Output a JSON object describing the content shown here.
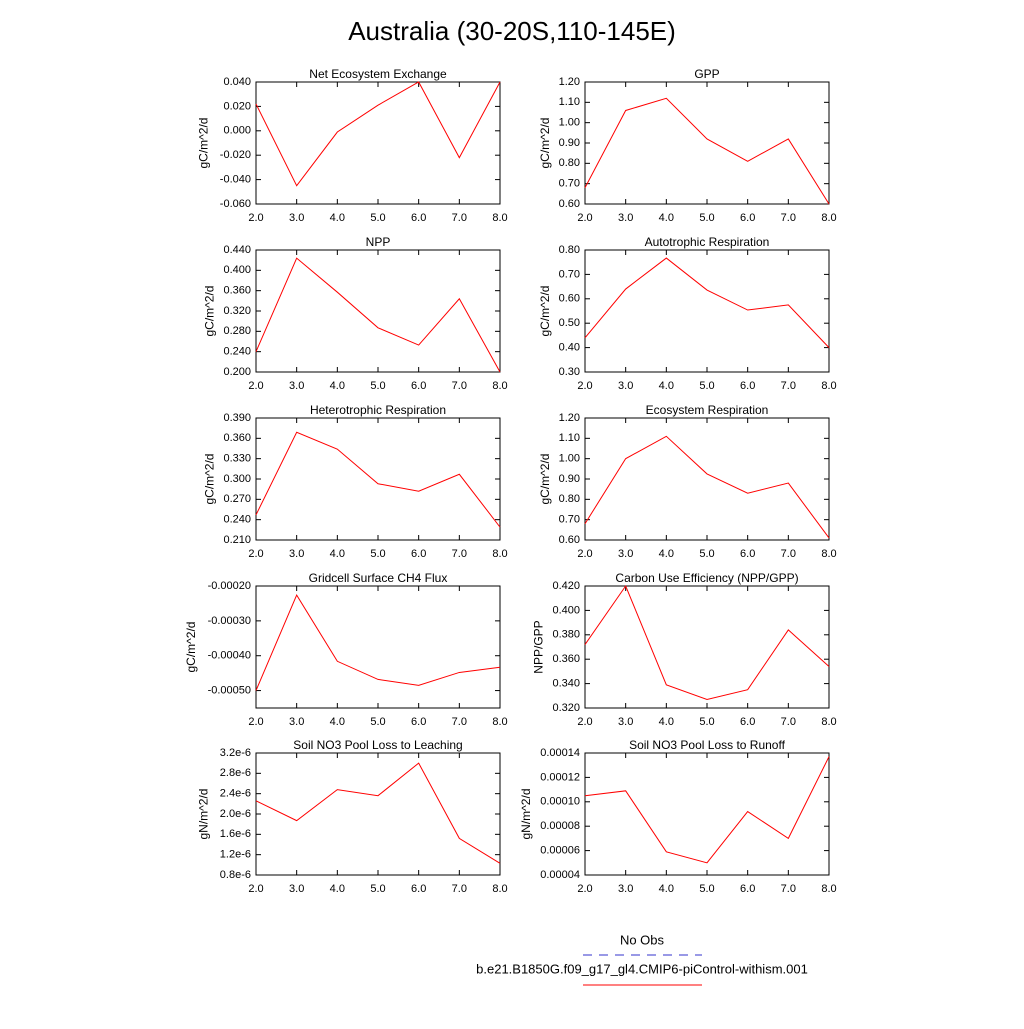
{
  "title": "Australia (30-20S,110-145E)",
  "legend": [
    {
      "name": "No Obs",
      "color": "#3333cc",
      "dashed": true
    },
    {
      "name": "b.e21.B1850G.f09_g17_gl4.CMIP6-piControl-withism.001",
      "color": "#ff0000"
    }
  ],
  "chart_data": [
    {
      "type": "line",
      "title": "Net Ecosystem Exchange",
      "ylabel": "gC/m^2/d",
      "color": "#ff0000",
      "x": [
        2,
        3,
        4,
        5,
        6,
        7,
        8
      ],
      "values": [
        0.022,
        -0.045,
        -0.001,
        0.021,
        0.04,
        -0.022,
        0.04
      ],
      "xlim": [
        2,
        8
      ],
      "xticks": [
        {
          "value": 2,
          "label": "2.0"
        },
        {
          "value": 3,
          "label": "3.0"
        },
        {
          "value": 4,
          "label": "4.0"
        },
        {
          "value": 5,
          "label": "5.0"
        },
        {
          "value": 6,
          "label": "6.0"
        },
        {
          "value": 7,
          "label": "7.0"
        },
        {
          "value": 8,
          "label": "8.0"
        }
      ],
      "ylim": [
        -0.06,
        0.04
      ],
      "yticks": [
        {
          "value": -0.06,
          "label": "-0.060"
        },
        {
          "value": -0.04,
          "label": "-0.040"
        },
        {
          "value": -0.02,
          "label": "-0.020"
        },
        {
          "value": 0,
          "label": "0.000"
        },
        {
          "value": 0.02,
          "label": "0.020"
        },
        {
          "value": 0.04,
          "label": "0.040"
        }
      ]
    },
    {
      "type": "line",
      "title": "GPP",
      "ylabel": "gC/m^2/d",
      "color": "#ff0000",
      "x": [
        2,
        3,
        4,
        5,
        6,
        7,
        8
      ],
      "values": [
        0.68,
        1.06,
        1.12,
        0.92,
        0.81,
        0.92,
        0.6
      ],
      "xlim": [
        2,
        8
      ],
      "xticks": [
        {
          "value": 2,
          "label": "2.0"
        },
        {
          "value": 3,
          "label": "3.0"
        },
        {
          "value": 4,
          "label": "4.0"
        },
        {
          "value": 5,
          "label": "5.0"
        },
        {
          "value": 6,
          "label": "6.0"
        },
        {
          "value": 7,
          "label": "7.0"
        },
        {
          "value": 8,
          "label": "8.0"
        }
      ],
      "ylim": [
        0.6,
        1.2
      ],
      "yticks": [
        {
          "value": 0.6,
          "label": "0.60"
        },
        {
          "value": 0.7,
          "label": "0.70"
        },
        {
          "value": 0.8,
          "label": "0.80"
        },
        {
          "value": 0.9,
          "label": "0.90"
        },
        {
          "value": 1.0,
          "label": "1.00"
        },
        {
          "value": 1.1,
          "label": "1.10"
        },
        {
          "value": 1.2,
          "label": "1.20"
        }
      ]
    },
    {
      "type": "line",
      "title": "NPP",
      "ylabel": "gC/m^2/d",
      "color": "#ff0000",
      "x": [
        2,
        3,
        4,
        5,
        6,
        7,
        8
      ],
      "values": [
        0.24,
        0.424,
        0.357,
        0.287,
        0.253,
        0.344,
        0.2
      ],
      "xlim": [
        2,
        8
      ],
      "xticks": [
        {
          "value": 2,
          "label": "2.0"
        },
        {
          "value": 3,
          "label": "3.0"
        },
        {
          "value": 4,
          "label": "4.0"
        },
        {
          "value": 5,
          "label": "5.0"
        },
        {
          "value": 6,
          "label": "6.0"
        },
        {
          "value": 7,
          "label": "7.0"
        },
        {
          "value": 8,
          "label": "8.0"
        }
      ],
      "ylim": [
        0.2,
        0.44
      ],
      "yticks": [
        {
          "value": 0.2,
          "label": "0.200"
        },
        {
          "value": 0.24,
          "label": "0.240"
        },
        {
          "value": 0.28,
          "label": "0.280"
        },
        {
          "value": 0.32,
          "label": "0.320"
        },
        {
          "value": 0.36,
          "label": "0.360"
        },
        {
          "value": 0.4,
          "label": "0.400"
        },
        {
          "value": 0.44,
          "label": "0.440"
        }
      ]
    },
    {
      "type": "line",
      "title": "Autotrophic Respiration",
      "ylabel": "gC/m^2/d",
      "color": "#ff0000",
      "x": [
        2,
        3,
        4,
        5,
        6,
        7,
        8
      ],
      "values": [
        0.44,
        0.64,
        0.767,
        0.636,
        0.554,
        0.575,
        0.4
      ],
      "xlim": [
        2,
        8
      ],
      "xticks": [
        {
          "value": 2,
          "label": "2.0"
        },
        {
          "value": 3,
          "label": "3.0"
        },
        {
          "value": 4,
          "label": "4.0"
        },
        {
          "value": 5,
          "label": "5.0"
        },
        {
          "value": 6,
          "label": "6.0"
        },
        {
          "value": 7,
          "label": "7.0"
        },
        {
          "value": 8,
          "label": "8.0"
        }
      ],
      "ylim": [
        0.3,
        0.8
      ],
      "yticks": [
        {
          "value": 0.3,
          "label": "0.30"
        },
        {
          "value": 0.4,
          "label": "0.40"
        },
        {
          "value": 0.5,
          "label": "0.50"
        },
        {
          "value": 0.6,
          "label": "0.60"
        },
        {
          "value": 0.7,
          "label": "0.70"
        },
        {
          "value": 0.8,
          "label": "0.80"
        }
      ]
    },
    {
      "type": "line",
      "title": "Heterotrophic Respiration",
      "ylabel": "gC/m^2/d",
      "color": "#ff0000",
      "x": [
        2,
        3,
        4,
        5,
        6,
        7,
        8
      ],
      "values": [
        0.247,
        0.369,
        0.344,
        0.293,
        0.282,
        0.307,
        0.229
      ],
      "xlim": [
        2,
        8
      ],
      "xticks": [
        {
          "value": 2,
          "label": "2.0"
        },
        {
          "value": 3,
          "label": "3.0"
        },
        {
          "value": 4,
          "label": "4.0"
        },
        {
          "value": 5,
          "label": "5.0"
        },
        {
          "value": 6,
          "label": "6.0"
        },
        {
          "value": 7,
          "label": "7.0"
        },
        {
          "value": 8,
          "label": "8.0"
        }
      ],
      "ylim": [
        0.21,
        0.39
      ],
      "yticks": [
        {
          "value": 0.21,
          "label": "0.210"
        },
        {
          "value": 0.24,
          "label": "0.240"
        },
        {
          "value": 0.27,
          "label": "0.270"
        },
        {
          "value": 0.3,
          "label": "0.300"
        },
        {
          "value": 0.33,
          "label": "0.330"
        },
        {
          "value": 0.36,
          "label": "0.360"
        },
        {
          "value": 0.39,
          "label": "0.390"
        }
      ]
    },
    {
      "type": "line",
      "title": "Ecosystem Respiration",
      "ylabel": "gC/m^2/d",
      "color": "#ff0000",
      "x": [
        2,
        3,
        4,
        5,
        6,
        7,
        8
      ],
      "values": [
        0.68,
        1.0,
        1.11,
        0.925,
        0.83,
        0.88,
        0.61
      ],
      "xlim": [
        2,
        8
      ],
      "xticks": [
        {
          "value": 2,
          "label": "2.0"
        },
        {
          "value": 3,
          "label": "3.0"
        },
        {
          "value": 4,
          "label": "4.0"
        },
        {
          "value": 5,
          "label": "5.0"
        },
        {
          "value": 6,
          "label": "6.0"
        },
        {
          "value": 7,
          "label": "7.0"
        },
        {
          "value": 8,
          "label": "8.0"
        }
      ],
      "ylim": [
        0.6,
        1.2
      ],
      "yticks": [
        {
          "value": 0.6,
          "label": "0.60"
        },
        {
          "value": 0.7,
          "label": "0.70"
        },
        {
          "value": 0.8,
          "label": "0.80"
        },
        {
          "value": 0.9,
          "label": "0.90"
        },
        {
          "value": 1.0,
          "label": "1.00"
        },
        {
          "value": 1.1,
          "label": "1.10"
        },
        {
          "value": 1.2,
          "label": "1.20"
        }
      ]
    },
    {
      "type": "line",
      "title": "Gridcell Surface CH4 Flux",
      "ylabel": "gC/m^2/d",
      "color": "#ff0000",
      "x": [
        2,
        3,
        4,
        5,
        6,
        7,
        8
      ],
      "values": [
        -0.0005,
        -0.000226,
        -0.000416,
        -0.000468,
        -0.000485,
        -0.000448,
        -0.000433
      ],
      "xlim": [
        2,
        8
      ],
      "xticks": [
        {
          "value": 2,
          "label": "2.0"
        },
        {
          "value": 3,
          "label": "3.0"
        },
        {
          "value": 4,
          "label": "4.0"
        },
        {
          "value": 5,
          "label": "5.0"
        },
        {
          "value": 6,
          "label": "6.0"
        },
        {
          "value": 7,
          "label": "7.0"
        },
        {
          "value": 8,
          "label": "8.0"
        }
      ],
      "ylim": [
        -0.00055,
        -0.0002
      ],
      "yticks": [
        {
          "value": -0.0005,
          "label": "-0.00050"
        },
        {
          "value": -0.0004,
          "label": "-0.00040"
        },
        {
          "value": -0.0003,
          "label": "-0.00030"
        },
        {
          "value": -0.0002,
          "label": "-0.00020"
        }
      ]
    },
    {
      "type": "line",
      "title": "Carbon Use Efficiency (NPP/GPP)",
      "ylabel": "NPP/GPP",
      "color": "#ff0000",
      "x": [
        2,
        3,
        4,
        5,
        6,
        7,
        8
      ],
      "values": [
        0.372,
        0.42,
        0.339,
        0.327,
        0.335,
        0.384,
        0.354
      ],
      "xlim": [
        2,
        8
      ],
      "xticks": [
        {
          "value": 2,
          "label": "2.0"
        },
        {
          "value": 3,
          "label": "3.0"
        },
        {
          "value": 4,
          "label": "4.0"
        },
        {
          "value": 5,
          "label": "5.0"
        },
        {
          "value": 6,
          "label": "6.0"
        },
        {
          "value": 7,
          "label": "7.0"
        },
        {
          "value": 8,
          "label": "8.0"
        }
      ],
      "ylim": [
        0.32,
        0.42
      ],
      "yticks": [
        {
          "value": 0.32,
          "label": "0.320"
        },
        {
          "value": 0.34,
          "label": "0.340"
        },
        {
          "value": 0.36,
          "label": "0.360"
        },
        {
          "value": 0.38,
          "label": "0.380"
        },
        {
          "value": 0.4,
          "label": "0.400"
        },
        {
          "value": 0.42,
          "label": "0.420"
        }
      ]
    },
    {
      "type": "line",
      "title": "Soil NO3 Pool Loss to Leaching",
      "ylabel": "gN/m^2/d",
      "color": "#ff0000",
      "x": [
        2,
        3,
        4,
        5,
        6,
        7,
        8
      ],
      "values": [
        2.26e-06,
        1.87e-06,
        2.48e-06,
        2.36e-06,
        3e-06,
        1.52e-06,
        1.03e-06
      ],
      "xlim": [
        2,
        8
      ],
      "xticks": [
        {
          "value": 2,
          "label": "2.0"
        },
        {
          "value": 3,
          "label": "3.0"
        },
        {
          "value": 4,
          "label": "4.0"
        },
        {
          "value": 5,
          "label": "5.0"
        },
        {
          "value": 6,
          "label": "6.0"
        },
        {
          "value": 7,
          "label": "7.0"
        },
        {
          "value": 8,
          "label": "8.0"
        }
      ],
      "ylim": [
        8e-07,
        3.2e-06
      ],
      "yticks": [
        {
          "value": 8e-07,
          "label": "0.8e-6"
        },
        {
          "value": 1.2e-06,
          "label": "1.2e-6"
        },
        {
          "value": 1.6e-06,
          "label": "1.6e-6"
        },
        {
          "value": 2e-06,
          "label": "2.0e-6"
        },
        {
          "value": 2.4e-06,
          "label": "2.4e-6"
        },
        {
          "value": 2.8e-06,
          "label": "2.8e-6"
        },
        {
          "value": 3.2e-06,
          "label": "3.2e-6"
        }
      ]
    },
    {
      "type": "line",
      "title": "Soil NO3 Pool Loss to Runoff",
      "ylabel": "gN/m^2/d",
      "color": "#ff0000",
      "x": [
        2,
        3,
        4,
        5,
        6,
        7,
        8
      ],
      "values": [
        0.000105,
        0.000109,
        5.9e-05,
        5e-05,
        9.2e-05,
        7e-05,
        0.000137
      ],
      "xlim": [
        2,
        8
      ],
      "xticks": [
        {
          "value": 2,
          "label": "2.0"
        },
        {
          "value": 3,
          "label": "3.0"
        },
        {
          "value": 4,
          "label": "4.0"
        },
        {
          "value": 5,
          "label": "5.0"
        },
        {
          "value": 6,
          "label": "6.0"
        },
        {
          "value": 7,
          "label": "7.0"
        },
        {
          "value": 8,
          "label": "8.0"
        }
      ],
      "ylim": [
        4e-05,
        0.00014
      ],
      "yticks": [
        {
          "value": 4e-05,
          "label": "0.00004"
        },
        {
          "value": 6e-05,
          "label": "0.00006"
        },
        {
          "value": 8e-05,
          "label": "0.00008"
        },
        {
          "value": 0.0001,
          "label": "0.00010"
        },
        {
          "value": 0.00012,
          "label": "0.00012"
        },
        {
          "value": 0.00014,
          "label": "0.00014"
        }
      ]
    }
  ]
}
